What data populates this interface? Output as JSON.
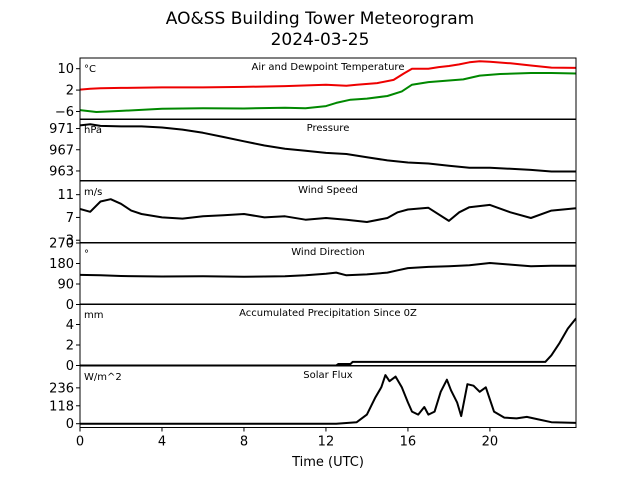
{
  "title_line1": "AO&SS Building Tower Meteorogram",
  "title_line2": "2024-03-25",
  "chart_data": {
    "type": "line",
    "xlabel": "Time (UTC)",
    "x_ticks": [
      0,
      4,
      8,
      12,
      16,
      20
    ],
    "x_tick_labels": [
      "0",
      "4",
      "8",
      "12",
      "16",
      "20"
    ],
    "xlim": [
      0,
      24.2
    ],
    "panels": [
      {
        "title": "Air and Dewpoint Temperature",
        "unit": "°C",
        "ylim": [
          -9,
          14
        ],
        "y_ticks": [
          -6,
          2,
          10
        ],
        "y_tick_labels": [
          "−6",
          "2",
          "10"
        ],
        "series": [
          {
            "color": "#ee0000",
            "x": [
              0,
              0.5,
              1,
              2,
              4,
              6,
              8,
              10,
              12,
              13,
              13.5,
              14.5,
              15.3,
              15.8,
              16.2,
              17,
              17.5,
              18,
              18.5,
              19,
              19.5,
              20,
              21,
              22,
              23,
              24.2
            ],
            "y": [
              2.2,
              2.5,
              2.7,
              2.8,
              3.0,
              3.0,
              3.2,
              3.5,
              4.0,
              3.6,
              4.0,
              4.6,
              5.8,
              8.2,
              10.0,
              10.0,
              10.6,
              11.0,
              11.6,
              12.4,
              12.8,
              12.6,
              12.0,
              11.2,
              10.4,
              10.3
            ]
          },
          {
            "color": "#008800",
            "x": [
              0,
              0.8,
              2,
              4,
              6,
              8,
              10,
              11,
              12,
              12.5,
              13.2,
              14,
              15,
              15.7,
              16.2,
              17,
              18,
              18.7,
              19.5,
              20.5,
              22,
              23,
              24.2
            ],
            "y": [
              -5.5,
              -6.2,
              -5.8,
              -5.0,
              -4.8,
              -4.9,
              -4.6,
              -4.8,
              -4.0,
              -2.8,
              -1.6,
              -1.2,
              -0.2,
              1.5,
              4.0,
              5.0,
              5.6,
              6.0,
              7.4,
              8.0,
              8.4,
              8.4,
              8.2
            ]
          }
        ]
      },
      {
        "title": "Pressure",
        "unit": "hPa",
        "ylim": [
          961.2,
          972.8
        ],
        "y_ticks": [
          963,
          967,
          971
        ],
        "y_tick_labels": [
          "963",
          "967",
          "971"
        ],
        "series": [
          {
            "color": "#000000",
            "x": [
              0,
              0.5,
              1,
              2,
              3,
              4,
              5,
              6,
              7,
              8,
              9,
              10,
              11,
              12,
              13,
              14,
              15,
              16,
              17,
              18,
              19,
              20,
              21,
              22,
              23,
              24.2
            ],
            "y": [
              971.6,
              971.8,
              971.5,
              971.4,
              971.4,
              971.2,
              970.8,
              970.2,
              969.4,
              968.6,
              967.8,
              967.2,
              966.8,
              966.4,
              966.2,
              965.6,
              965.0,
              964.6,
              964.4,
              964.0,
              963.6,
              963.6,
              963.4,
              963.2,
              962.9,
              962.9
            ]
          }
        ]
      },
      {
        "title": "Wind Speed",
        "unit": "m/s",
        "ylim": [
          2.6,
          13.4
        ],
        "y_ticks": [
          3,
          7,
          11
        ],
        "y_tick_labels": [
          "3",
          "7",
          "11"
        ],
        "series": [
          {
            "color": "#000000",
            "x": [
              0,
              0.5,
              1,
              1.5,
              2,
              2.5,
              3,
              4,
              5,
              6,
              7,
              8,
              9,
              10,
              11,
              12,
              13,
              14,
              15,
              15.5,
              16,
              17,
              18,
              18.5,
              19,
              20,
              21,
              22,
              23,
              24.2
            ],
            "y": [
              8.5,
              8.0,
              9.8,
              10.2,
              9.4,
              8.2,
              7.6,
              7.0,
              6.8,
              7.2,
              7.4,
              7.6,
              7.0,
              7.2,
              6.6,
              6.9,
              6.6,
              6.2,
              6.9,
              7.9,
              8.4,
              8.7,
              6.4,
              7.9,
              8.8,
              9.2,
              7.9,
              6.9,
              8.2,
              8.6
            ]
          }
        ]
      },
      {
        "title": "Wind Direction",
        "unit": "°",
        "ylim": [
          0,
          270
        ],
        "y_ticks": [
          0,
          90,
          180,
          270
        ],
        "y_tick_labels": [
          "0",
          "90",
          "180",
          "270"
        ],
        "series": [
          {
            "color": "#000000",
            "x": [
              0,
              1,
              2,
              4,
              6,
              8,
              10,
              11,
              12,
              12.5,
              13,
              14,
              15,
              15.5,
              16,
              17,
              18,
              19,
              20,
              21,
              22,
              23,
              24.2
            ],
            "y": [
              130,
              128,
              125,
              123,
              124,
              122,
              124,
              128,
              135,
              140,
              128,
              132,
              140,
              150,
              160,
              165,
              168,
              172,
              182,
              175,
              168,
              170,
              170
            ]
          }
        ]
      },
      {
        "title": "Accumulated Precipitation Since 0Z",
        "unit": "mm",
        "ylim": [
          0,
          6
        ],
        "y_ticks": [
          0,
          2,
          4
        ],
        "y_tick_labels": [
          "0",
          "2",
          "4"
        ],
        "series": [
          {
            "color": "#000000",
            "x": [
              0,
              12.5,
              12.6,
              13.2,
              13.3,
              22.7,
              23.0,
              23.4,
              23.8,
              24.2
            ],
            "y": [
              0,
              0,
              0.15,
              0.15,
              0.35,
              0.35,
              1.0,
              2.2,
              3.6,
              4.6
            ]
          }
        ]
      },
      {
        "title": "Solar Flux",
        "unit": "W/m^2",
        "ylim": [
          -25,
          380
        ],
        "y_ticks": [
          0,
          118,
          236
        ],
        "y_tick_labels": [
          "0",
          "118",
          "236"
        ],
        "series": [
          {
            "color": "#000000",
            "x": [
              0,
              12.5,
              13.5,
              14.0,
              14.4,
              14.7,
              14.9,
              15.1,
              15.4,
              15.7,
              16.0,
              16.2,
              16.5,
              16.8,
              17.0,
              17.3,
              17.6,
              17.9,
              18.1,
              18.4,
              18.6,
              18.9,
              19.2,
              19.5,
              19.8,
              20.2,
              20.7,
              21.3,
              21.8,
              22.3,
              23.0,
              24.2
            ],
            "y": [
              0,
              0,
              10,
              60,
              170,
              240,
              320,
              280,
              310,
              240,
              140,
              80,
              60,
              110,
              60,
              80,
              210,
              290,
              220,
              140,
              50,
              260,
              250,
              210,
              240,
              80,
              40,
              35,
              45,
              30,
              10,
              5
            ]
          }
        ]
      }
    ]
  }
}
